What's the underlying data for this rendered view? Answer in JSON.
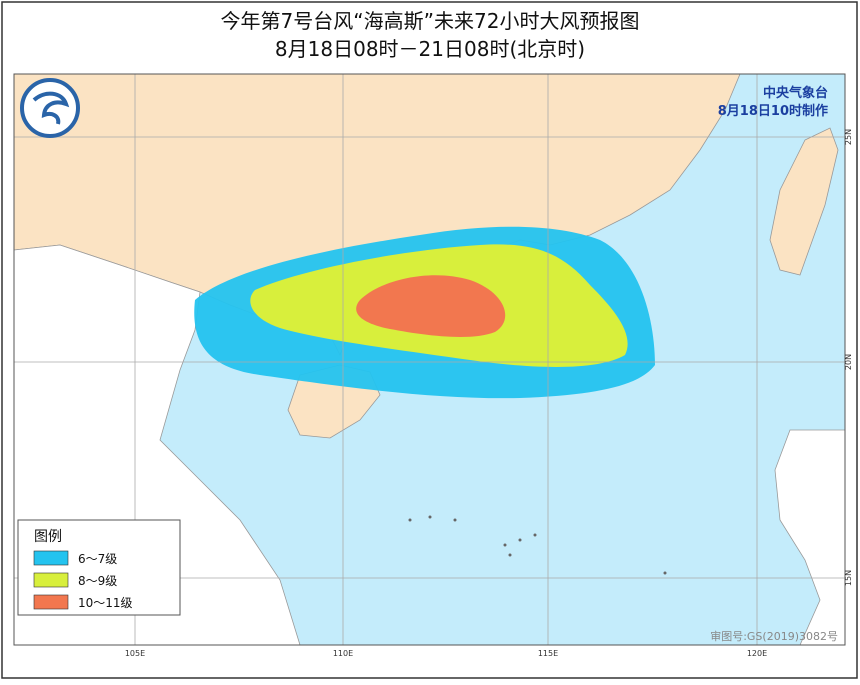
{
  "header": {
    "title": "今年第7号台风“海高斯”未来72小时大风预报图",
    "subtitle": "8月18日08时－21日08时(北京时)"
  },
  "agency": {
    "name": "中央气象台",
    "issued": "8月18日10时制作"
  },
  "legend": {
    "title": "图例",
    "items": [
      "6～7级",
      "8～9级",
      "10～11级"
    ]
  },
  "axes": {
    "longitude": [
      "105E",
      "110E",
      "115E",
      "120E"
    ],
    "latitude": [
      "25N",
      "20N",
      "15N"
    ]
  },
  "footer": {
    "approval": "审图号:GS(2019)3082号"
  }
}
